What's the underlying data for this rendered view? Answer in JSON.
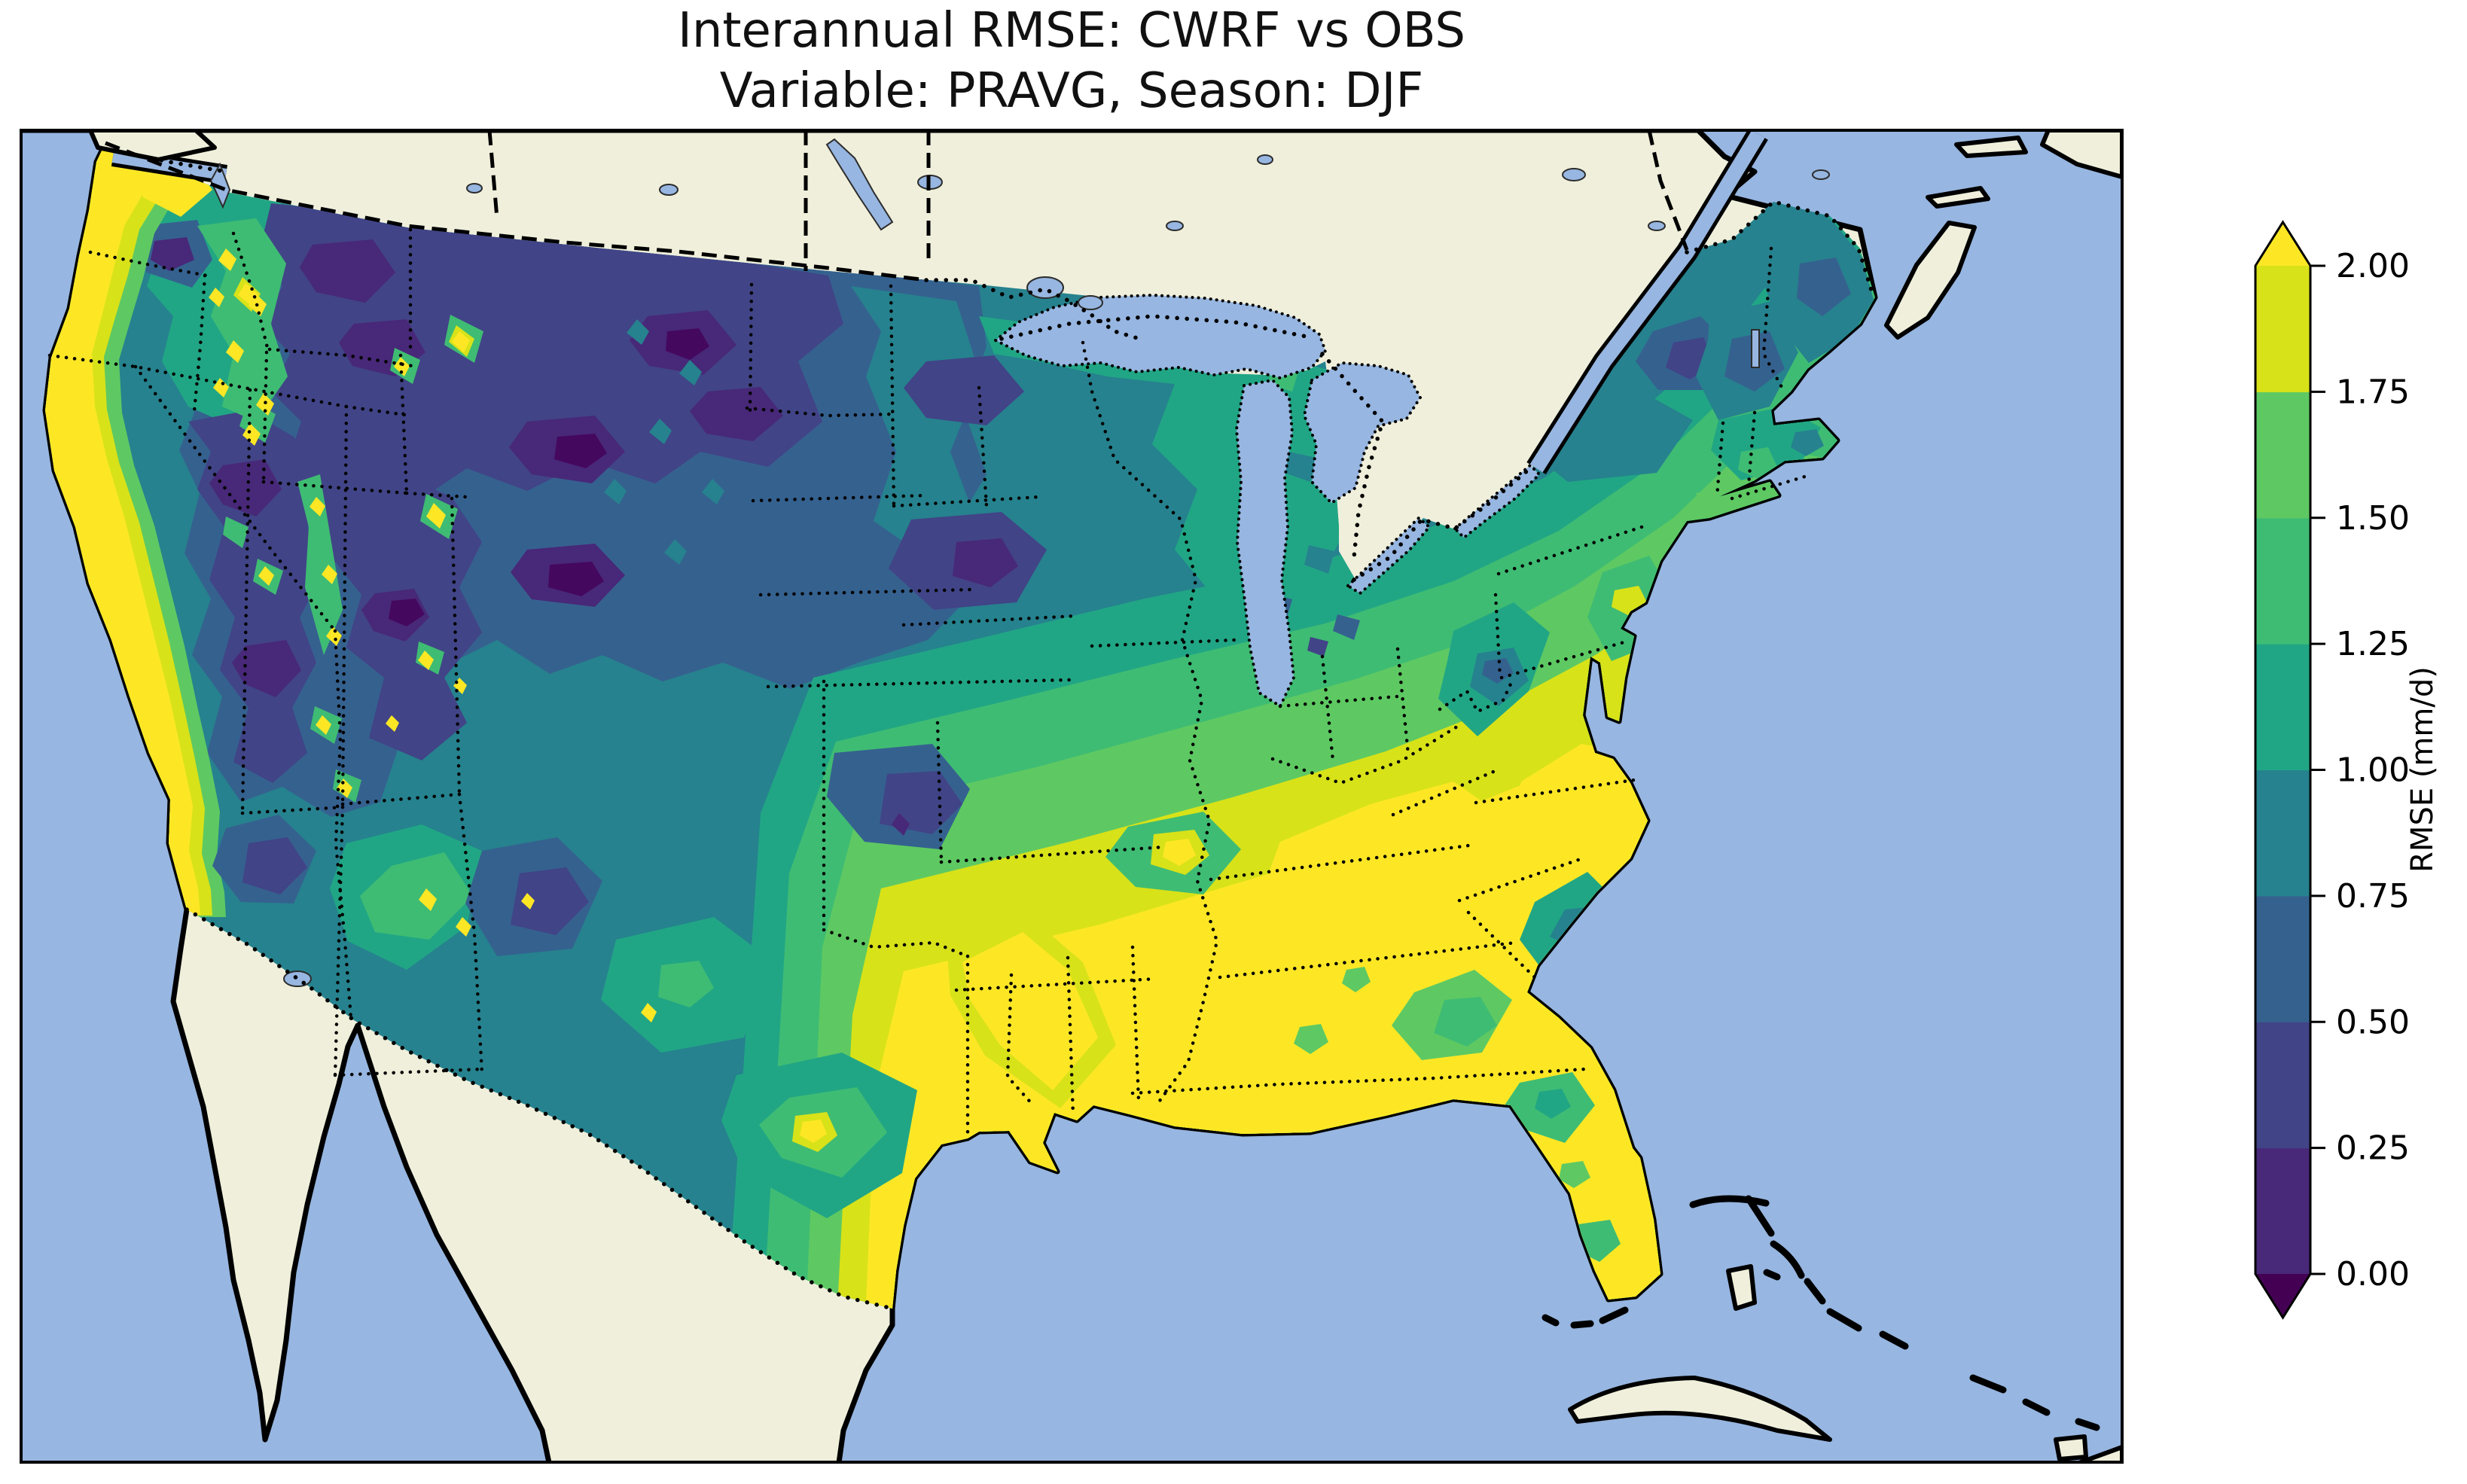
{
  "title": {
    "line1": "Interannual RMSE: CWRF vs OBS",
    "line2": "Variable: PRAVG, Season: DJF"
  },
  "colorbar": {
    "label": "RMSE (mm/d)",
    "ticks": [
      "2.00",
      "1.75",
      "1.50",
      "1.25",
      "1.00",
      "0.75",
      "0.50",
      "0.25",
      "0.00"
    ],
    "tick_values": [
      2.0,
      1.75,
      1.5,
      1.25,
      1.0,
      0.75,
      0.5,
      0.25,
      0.0
    ],
    "bin_colors_bottom_to_top": [
      "#482878",
      "#414487",
      "#35618f",
      "#26828e",
      "#21a685",
      "#3fbc73",
      "#5ec962",
      "#d8e219"
    ],
    "under_color": "#440154",
    "over_color": "#fde725",
    "extend": "both"
  },
  "map": {
    "ocean_color": "#97b6e1",
    "land_color": "#efefdb",
    "lake_color": "#97b6e1",
    "coastline_color": "#000000",
    "border_styles": {
      "international": "dashed/dotted black",
      "states": "dotted black"
    }
  },
  "chart_data": {
    "type": "heatmap",
    "subtype": "filled-contour geographic map (cartopy-style, viridis colormap)",
    "title": "Interannual RMSE: CWRF vs OBS",
    "subtitle": "Variable: PRAVG, Season: DJF",
    "variable": "PRAVG",
    "season": "DJF",
    "units": "mm/d",
    "colormap": "viridis",
    "levels": [
      0.0,
      0.25,
      0.5,
      0.75,
      1.0,
      1.25,
      1.5,
      1.75,
      2.0
    ],
    "colorbar_extend": "both",
    "geographic_extent": "Continental United States with surrounding Canada, Mexico, Gulf of Mexico, Atlantic (Bahamas/Cuba) and Great Lakes",
    "legend_position": "right vertical colorbar",
    "regions_approx_rmse": [
      {
        "region": "Pacific Northwest / California coast",
        "rmse_mm_per_day": "> 2.0"
      },
      {
        "region": "Cascades / Sierra foothills",
        "rmse_mm_per_day": "1.5 - 2.0"
      },
      {
        "region": "Columbia Basin (interior WA)",
        "rmse_mm_per_day": "0.25 - 0.5"
      },
      {
        "region": "Idaho / N Rockies mountains",
        "rmse_mm_per_day": "1.25 - >2.0 speckled peaks"
      },
      {
        "region": "Montana / Wyoming plains",
        "rmse_mm_per_day": "0.0 - 0.5"
      },
      {
        "region": "Great Basin (NV/UT)",
        "rmse_mm_per_day": "0.25 - 0.5 with 1.5 - 2.0 mountain spots"
      },
      {
        "region": "Colorado Rockies",
        "rmse_mm_per_day": "0.25 - 0.5 with 1.5 - 2.0 spots"
      },
      {
        "region": "Dakotas / Nebraska",
        "rmse_mm_per_day": "0.5 - 0.75"
      },
      {
        "region": "Minnesota / Iowa",
        "rmse_mm_per_day": "0.25 - 0.75"
      },
      {
        "region": "Great Lakes / Upper Midwest",
        "rmse_mm_per_day": "0.75 - 1.25"
      },
      {
        "region": "Ohio Valley / Kentucky / Tennessee",
        "rmse_mm_per_day": "1.75 - > 2.0"
      },
      {
        "region": "Appalachians (WV)",
        "rmse_mm_per_day": "0.75 - 1.25"
      },
      {
        "region": "Mid-Atlantic piedmont",
        "rmse_mm_per_day": "1.5 - > 2.0"
      },
      {
        "region": "Carolinas coast",
        "rmse_mm_per_day": "0.75 - 1.25"
      },
      {
        "region": "Deep South (LA/MS/AL/GA)",
        "rmse_mm_per_day": "> 2.0"
      },
      {
        "region": "Texas Gulf Coast",
        "rmse_mm_per_day": "> 2.0"
      },
      {
        "region": "Texas Panhandle",
        "rmse_mm_per_day": "0.5 - 0.75"
      },
      {
        "region": "Florida",
        "rmse_mm_per_day": "1.75 - > 2.0 with 1.25 - 1.5 patches"
      },
      {
        "region": "New England / upstate NY",
        "rmse_mm_per_day": "0.5 - 1.0"
      },
      {
        "region": "Maine",
        "rmse_mm_per_day": "0.75 - 1.0"
      }
    ]
  }
}
